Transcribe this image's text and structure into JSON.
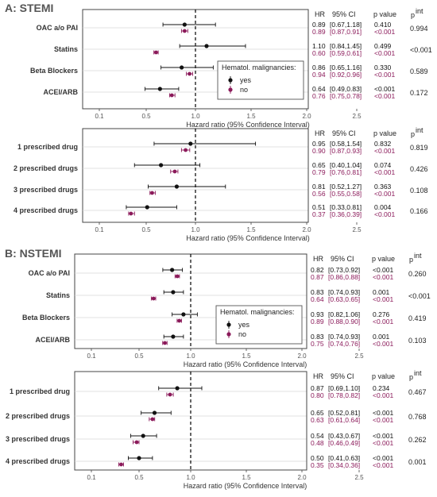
{
  "colors": {
    "yes": "#111111",
    "no": "#8b1a5a",
    "frame": "#444444",
    "grid": "#d6d6d6"
  },
  "chart_data": [
    {
      "type": "forest",
      "section_title": "A: STEMI",
      "xlabel": "Hazard ratio (95% Confidence Interval)",
      "xlim": [
        0,
        2.5
      ],
      "xticks": [
        "0.1",
        "0.5",
        "1.0",
        "1.5",
        "2.0",
        "2.5"
      ],
      "reference_line": 1.0,
      "headers": {
        "hr": "HR",
        "ci": "95% CI",
        "p": "p value",
        "pint": "p",
        "pint_sup": "int"
      },
      "legend": {
        "title": "Hematol. malignancies:",
        "entries": [
          "yes",
          "no"
        ],
        "placement": "right"
      },
      "rows": [
        {
          "label": "OAC a/o PAI",
          "pint": "0.994",
          "yes": {
            "hr": 0.89,
            "lo": 0.67,
            "hi": 1.18,
            "hr_text": "0.89",
            "ci_text": "[0.67,1.18]",
            "p_text": "0.410"
          },
          "no": {
            "hr": 0.89,
            "lo": 0.87,
            "hi": 0.91,
            "hr_text": "0.89",
            "ci_text": "[0.87,0.91]",
            "p_text": "<0.001"
          }
        },
        {
          "label": "Statins",
          "pint": "<0.001",
          "yes": {
            "hr": 1.1,
            "lo": 0.84,
            "hi": 1.45,
            "hr_text": "1.10",
            "ci_text": "[0.84,1.45]",
            "p_text": "0.499"
          },
          "no": {
            "hr": 0.6,
            "lo": 0.59,
            "hi": 0.61,
            "hr_text": "0.60",
            "ci_text": "[0.59,0.61]",
            "p_text": "<0.001"
          }
        },
        {
          "label": "Beta Blockers",
          "pint": "0.589",
          "yes": {
            "hr": 0.86,
            "lo": 0.65,
            "hi": 1.16,
            "hr_text": "0.86",
            "ci_text": "[0.65,1.16]",
            "p_text": "0.330"
          },
          "no": {
            "hr": 0.94,
            "lo": 0.92,
            "hi": 0.96,
            "hr_text": "0.94",
            "ci_text": "[0.92,0.96]",
            "p_text": "<0.001"
          }
        },
        {
          "label": "ACEI/ARB",
          "pint": "0.172",
          "yes": {
            "hr": 0.64,
            "lo": 0.49,
            "hi": 0.83,
            "hr_text": "0.64",
            "ci_text": "[0.49,0.83]",
            "p_text": "<0.001"
          },
          "no": {
            "hr": 0.76,
            "lo": 0.75,
            "hi": 0.78,
            "hr_text": "0.76",
            "ci_text": "[0.75,0.78]",
            "p_text": "<0.001"
          }
        }
      ]
    },
    {
      "type": "forest",
      "xlabel": "Hazard ratio (95% Confidence Interval)",
      "xlim": [
        0,
        2.5
      ],
      "xticks": [
        "0.1",
        "0.5",
        "1.0",
        "1.5",
        "2.0",
        "2.5"
      ],
      "reference_line": 1.0,
      "headers": {
        "hr": "HR",
        "ci": "95% CI",
        "p": "p value",
        "pint": "p",
        "pint_sup": "int"
      },
      "rows": [
        {
          "label": "1 prescribed drug",
          "pint": "0.819",
          "yes": {
            "hr": 0.95,
            "lo": 0.58,
            "hi": 1.54,
            "hr_text": "0.95",
            "ci_text": "[0.58,1.54]",
            "p_text": "0.832"
          },
          "no": {
            "hr": 0.9,
            "lo": 0.87,
            "hi": 0.93,
            "hr_text": "0.90",
            "ci_text": "[0.87,0.93]",
            "p_text": "<0.001"
          }
        },
        {
          "label": "2 prescribed drugs",
          "pint": "0.426",
          "yes": {
            "hr": 0.65,
            "lo": 0.4,
            "hi": 1.04,
            "hr_text": "0.65",
            "ci_text": "[0.40,1.04]",
            "p_text": "0.074"
          },
          "no": {
            "hr": 0.79,
            "lo": 0.76,
            "hi": 0.81,
            "hr_text": "0.79",
            "ci_text": "[0.76,0.81]",
            "p_text": "<0.001"
          }
        },
        {
          "label": "3 prescribed drugs",
          "pint": "0.108",
          "yes": {
            "hr": 0.81,
            "lo": 0.52,
            "hi": 1.27,
            "hr_text": "0.81",
            "ci_text": "[0.52,1.27]",
            "p_text": "0.363"
          },
          "no": {
            "hr": 0.56,
            "lo": 0.55,
            "hi": 0.58,
            "hr_text": "0.56",
            "ci_text": "[0.55,0.58]",
            "p_text": "<0.001"
          }
        },
        {
          "label": "4 prescribed drugs",
          "pint": "0.166",
          "yes": {
            "hr": 0.51,
            "lo": 0.33,
            "hi": 0.81,
            "hr_text": "0.51",
            "ci_text": "[0.33,0.81]",
            "p_text": "0.004"
          },
          "no": {
            "hr": 0.37,
            "lo": 0.36,
            "hi": 0.39,
            "hr_text": "0.37",
            "ci_text": "[0.36,0.39]",
            "p_text": "<0.001"
          }
        }
      ]
    },
    {
      "type": "forest",
      "section_title": "B: NSTEMI",
      "xlabel": "Hazard ratio (95% Confidence Interval)",
      "xlim": [
        0,
        2.5
      ],
      "xticks": [
        "0.1",
        "0.5",
        "1.0",
        "1.5",
        "2.0",
        "2.5"
      ],
      "reference_line": 1.0,
      "headers": {
        "hr": "HR",
        "ci": "95% CI",
        "p": "p value",
        "pint": "p",
        "pint_sup": "int"
      },
      "legend": {
        "title": "Hematol. malignancies:",
        "entries": [
          "yes",
          "no"
        ],
        "placement": "right"
      },
      "rows": [
        {
          "label": "OAC a/o PAI",
          "pint": "0.260",
          "yes": {
            "hr": 0.82,
            "lo": 0.73,
            "hi": 0.92,
            "hr_text": "0.82",
            "ci_text": "[0.73,0.92]",
            "p_text": "<0.001"
          },
          "no": {
            "hr": 0.87,
            "lo": 0.86,
            "hi": 0.88,
            "hr_text": "0.87",
            "ci_text": "[0.86,0.88]",
            "p_text": "<0.001"
          }
        },
        {
          "label": "Statins",
          "pint": "<0.001",
          "yes": {
            "hr": 0.83,
            "lo": 0.74,
            "hi": 0.93,
            "hr_text": "0.83",
            "ci_text": "[0.74,0.93]",
            "p_text": "0.001"
          },
          "no": {
            "hr": 0.64,
            "lo": 0.63,
            "hi": 0.65,
            "hr_text": "0.64",
            "ci_text": "[0.63,0.65]",
            "p_text": "<0.001"
          }
        },
        {
          "label": "Beta Blockers",
          "pint": "0.419",
          "yes": {
            "hr": 0.93,
            "lo": 0.82,
            "hi": 1.06,
            "hr_text": "0.93",
            "ci_text": "[0.82,1.06]",
            "p_text": "0.276"
          },
          "no": {
            "hr": 0.89,
            "lo": 0.88,
            "hi": 0.9,
            "hr_text": "0.89",
            "ci_text": "[0.88,0.90]",
            "p_text": "<0.001"
          }
        },
        {
          "label": "ACEI/ARB",
          "pint": "0.103",
          "yes": {
            "hr": 0.83,
            "lo": 0.74,
            "hi": 0.93,
            "hr_text": "0.83",
            "ci_text": "[0.74,0.93]",
            "p_text": "0.001"
          },
          "no": {
            "hr": 0.75,
            "lo": 0.74,
            "hi": 0.76,
            "hr_text": "0.75",
            "ci_text": "[0.74,0.76]",
            "p_text": "<0.001"
          }
        }
      ]
    },
    {
      "type": "forest",
      "xlabel": "Hazard ratio (95% Confidence Interval)",
      "xlim": [
        0,
        2.5
      ],
      "xticks": [
        "0.1",
        "0.5",
        "1.0",
        "1.5",
        "2.0",
        "2.5"
      ],
      "reference_line": 1.0,
      "headers": {
        "hr": "HR",
        "ci": "95% CI",
        "p": "p value",
        "pint": "p",
        "pint_sup": "int"
      },
      "rows": [
        {
          "label": "1 prescribed drug",
          "pint": "0.467",
          "yes": {
            "hr": 0.87,
            "lo": 0.69,
            "hi": 1.1,
            "hr_text": "0.87",
            "ci_text": "[0.69,1.10]",
            "p_text": "0.234"
          },
          "no": {
            "hr": 0.8,
            "lo": 0.78,
            "hi": 0.82,
            "hr_text": "0.80",
            "ci_text": "[0.78,0.82]",
            "p_text": "<0.001"
          }
        },
        {
          "label": "2 prescribed drugs",
          "pint": "0.768",
          "yes": {
            "hr": 0.65,
            "lo": 0.52,
            "hi": 0.81,
            "hr_text": "0.65",
            "ci_text": "[0.52,0.81]",
            "p_text": "<0.001"
          },
          "no": {
            "hr": 0.63,
            "lo": 0.61,
            "hi": 0.64,
            "hr_text": "0.63",
            "ci_text": "[0.61,0.64]",
            "p_text": "<0.001"
          }
        },
        {
          "label": "3 prescribed drugs",
          "pint": "0.262",
          "yes": {
            "hr": 0.54,
            "lo": 0.43,
            "hi": 0.67,
            "hr_text": "0.54",
            "ci_text": "[0.43,0.67]",
            "p_text": "<0.001"
          },
          "no": {
            "hr": 0.48,
            "lo": 0.46,
            "hi": 0.49,
            "hr_text": "0.48",
            "ci_text": "[0.46,0.49]",
            "p_text": "<0.001"
          }
        },
        {
          "label": "4 prescribed drugs",
          "pint": "0.001",
          "yes": {
            "hr": 0.5,
            "lo": 0.41,
            "hi": 0.63,
            "hr_text": "0.50",
            "ci_text": "[0.41,0.63]",
            "p_text": "<0.001"
          },
          "no": {
            "hr": 0.35,
            "lo": 0.34,
            "hi": 0.36,
            "hr_text": "0.35",
            "ci_text": "[0.34,0.36]",
            "p_text": "<0.001"
          }
        }
      ]
    }
  ]
}
